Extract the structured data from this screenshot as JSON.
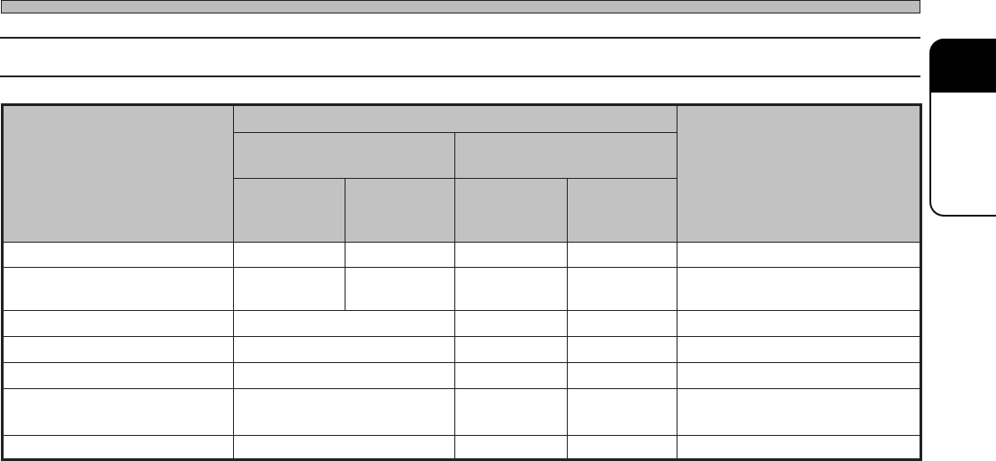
{
  "colors": {
    "header_fill": "#c2c2c2",
    "rule": "#222222",
    "tab": "#000000"
  },
  "table": {
    "header_rows": 3,
    "body_rows": 7,
    "columns": 6,
    "cells_text": []
  }
}
